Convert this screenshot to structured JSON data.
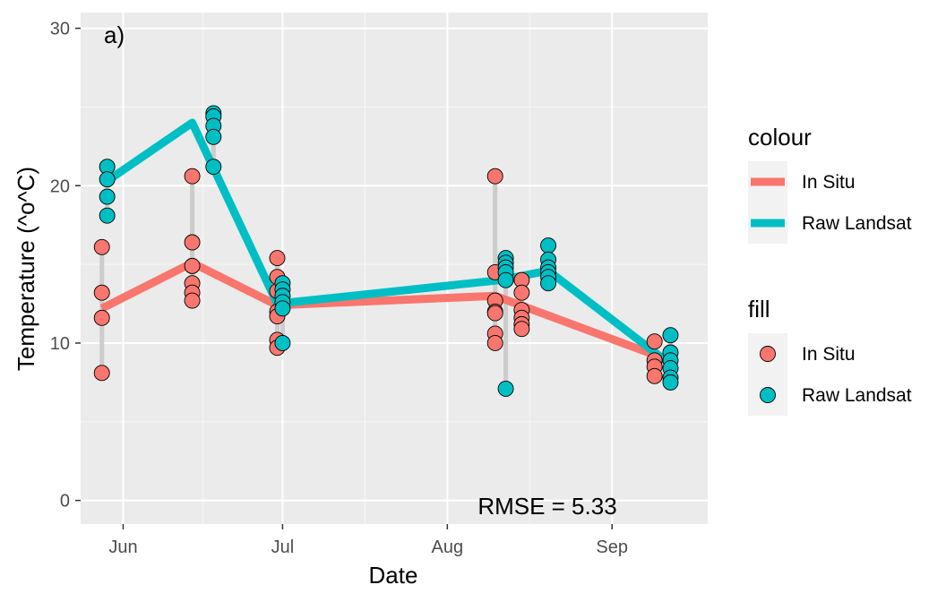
{
  "chart_data": {
    "type": "line",
    "panel_tag": "a)",
    "annotation": "RMSE = 5.33",
    "xlabel": "Date",
    "ylabel": "Temperature (^o^C)",
    "x_ticks": [
      "Jun",
      "Jul",
      "Aug",
      "Sep"
    ],
    "y_ticks": [
      "0",
      "10",
      "20",
      "30"
    ],
    "xlim": [
      "2019-05-24",
      "2019-09-19"
    ],
    "ylim": [
      -1.5,
      31
    ],
    "grid": true,
    "legend_position": "right",
    "legends": [
      {
        "title": "colour",
        "kind": "line",
        "entries": [
          {
            "label": "In Situ",
            "color": "#F8766D"
          },
          {
            "label": "Raw Landsat",
            "color": "#00BFC4"
          }
        ]
      },
      {
        "title": "fill",
        "kind": "point",
        "entries": [
          {
            "label": "In Situ",
            "color": "#F8766D"
          },
          {
            "label": "Raw Landsat",
            "color": "#00BFC4"
          }
        ]
      }
    ],
    "series": [
      {
        "name": "In Situ",
        "role": "mean-line",
        "color": "#F8766D",
        "x": [
          "2019-05-28",
          "2019-06-14",
          "2019-06-30",
          "2019-08-10",
          "2019-09-11"
        ],
        "y": [
          12.2,
          15.1,
          12.4,
          13.0,
          9.0
        ]
      },
      {
        "name": "Raw Landsat",
        "role": "mean-line",
        "color": "#00BFC4",
        "x": [
          "2019-05-29",
          "2019-06-14",
          "2019-06-30",
          "2019-08-11",
          "2019-08-20",
          "2019-09-11"
        ],
        "y": [
          20.3,
          24.0,
          12.5,
          14.0,
          14.6,
          8.9
        ]
      },
      {
        "name": "In Situ",
        "role": "points",
        "color": "#F8766D",
        "x": [
          "2019-05-28",
          "2019-05-28",
          "2019-05-28",
          "2019-05-28",
          "2019-06-14",
          "2019-06-14",
          "2019-06-14",
          "2019-06-14",
          "2019-06-14",
          "2019-06-14",
          "2019-06-30",
          "2019-06-30",
          "2019-06-30",
          "2019-06-30",
          "2019-06-30",
          "2019-06-30",
          "2019-06-30",
          "2019-08-10",
          "2019-08-10",
          "2019-08-10",
          "2019-08-10",
          "2019-08-10",
          "2019-08-10",
          "2019-08-10",
          "2019-08-15",
          "2019-08-15",
          "2019-08-15",
          "2019-08-15",
          "2019-08-15",
          "2019-08-15",
          "2019-09-09",
          "2019-09-09",
          "2019-09-09",
          "2019-09-09"
        ],
        "y": [
          16.1,
          13.2,
          11.6,
          8.1,
          20.6,
          16.4,
          14.9,
          13.8,
          13.2,
          12.7,
          15.4,
          14.2,
          13.3,
          12.0,
          11.7,
          10.2,
          9.7,
          20.6,
          14.5,
          12.7,
          12.0,
          11.9,
          10.6,
          10.0,
          14.0,
          13.2,
          12.1,
          11.6,
          11.2,
          10.9,
          10.1,
          8.9,
          8.5,
          7.9
        ]
      },
      {
        "name": "Raw Landsat",
        "role": "points",
        "color": "#00BFC4",
        "x": [
          "2019-05-29",
          "2019-05-29",
          "2019-05-29",
          "2019-05-29",
          "2019-06-18",
          "2019-06-18",
          "2019-06-18",
          "2019-06-18",
          "2019-06-18",
          "2019-07-01",
          "2019-07-01",
          "2019-07-01",
          "2019-07-01",
          "2019-07-01",
          "2019-07-01",
          "2019-08-12",
          "2019-08-12",
          "2019-08-12",
          "2019-08-12",
          "2019-08-12",
          "2019-08-12",
          "2019-08-20",
          "2019-08-20",
          "2019-08-20",
          "2019-08-20",
          "2019-08-20",
          "2019-08-20",
          "2019-09-12",
          "2019-09-12",
          "2019-09-12",
          "2019-09-12",
          "2019-09-12",
          "2019-09-12"
        ],
        "y": [
          21.2,
          20.4,
          19.3,
          18.1,
          24.6,
          24.4,
          23.8,
          23.1,
          21.2,
          13.8,
          13.4,
          13.0,
          12.6,
          12.2,
          10.0,
          15.4,
          15.1,
          14.8,
          14.5,
          14.0,
          7.1,
          16.2,
          15.3,
          14.8,
          14.5,
          14.2,
          13.8,
          10.5,
          9.4,
          8.9,
          8.4,
          7.8,
          7.5
        ]
      }
    ]
  }
}
